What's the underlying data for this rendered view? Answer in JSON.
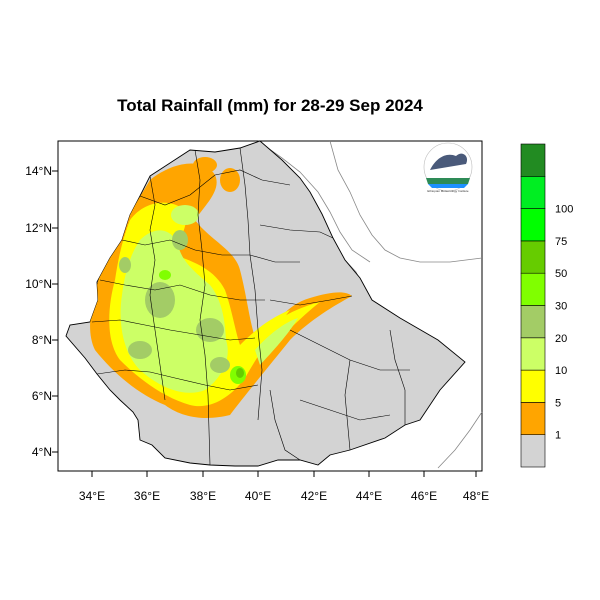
{
  "map": {
    "title": "Total Rainfall (mm) for 28-29 Sep 2024",
    "lon_ticks": [
      "34°E",
      "36°E",
      "38°E",
      "40°E",
      "42°E",
      "44°E",
      "46°E",
      "48°E"
    ],
    "lat_ticks": [
      "14°N",
      "12°N",
      "10°N",
      "8°N",
      "6°N",
      "4°N"
    ],
    "lon_range": [
      32.9,
      48.3
    ],
    "lat_range": [
      3.2,
      15.0
    ],
    "logo_caption": "Ethiopian Meteorology Institute"
  },
  "legend": {
    "labels": [
      "1",
      "5",
      "10",
      "20",
      "30",
      "50",
      "75",
      "100"
    ],
    "colors": [
      "#d3d3d3",
      "#ffa500",
      "#ffff00",
      "#ccff66",
      "#a3cc66",
      "#80ff00",
      "#66cc00",
      "#00ff00",
      "#00ee22",
      "#228b22"
    ]
  },
  "colors": {
    "land": "#d3d3d3",
    "outline": "#000000",
    "coast": "#777777"
  }
}
